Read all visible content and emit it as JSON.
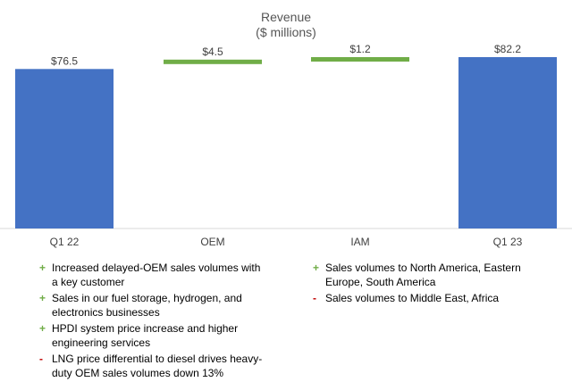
{
  "chart_data": {
    "type": "bar",
    "subtype": "waterfall",
    "title": "Revenue",
    "subtitle": "($ millions)",
    "categories": [
      "Q1 22",
      "OEM",
      "IAM",
      "Q1 23"
    ],
    "values": [
      76.5,
      4.5,
      1.2,
      82.2
    ],
    "bar_kinds": [
      "total",
      "increase",
      "increase",
      "total"
    ],
    "labels": [
      "$76.5",
      "$4.5",
      "$1.2",
      "$82.2"
    ],
    "ylim": [
      0,
      85
    ],
    "grid": false,
    "colors": {
      "total": "#4472C4",
      "increase": "#70AD47"
    }
  },
  "bullets": {
    "left": [
      {
        "sign": "+",
        "text": "Increased delayed-OEM sales volumes with a key customer"
      },
      {
        "sign": "+",
        "text": "Sales in our fuel storage, hydrogen, and electronics businesses"
      },
      {
        "sign": "+",
        "text": "HPDI system price increase and higher engineering services"
      },
      {
        "sign": "-",
        "text": "LNG price differential to diesel drives heavy-duty OEM sales volumes down 13%"
      }
    ],
    "right": [
      {
        "sign": "+",
        "text": "Sales volumes to North America, Eastern Europe, South America"
      },
      {
        "sign": "-",
        "text": "Sales volumes to Middle East, Africa"
      }
    ]
  }
}
